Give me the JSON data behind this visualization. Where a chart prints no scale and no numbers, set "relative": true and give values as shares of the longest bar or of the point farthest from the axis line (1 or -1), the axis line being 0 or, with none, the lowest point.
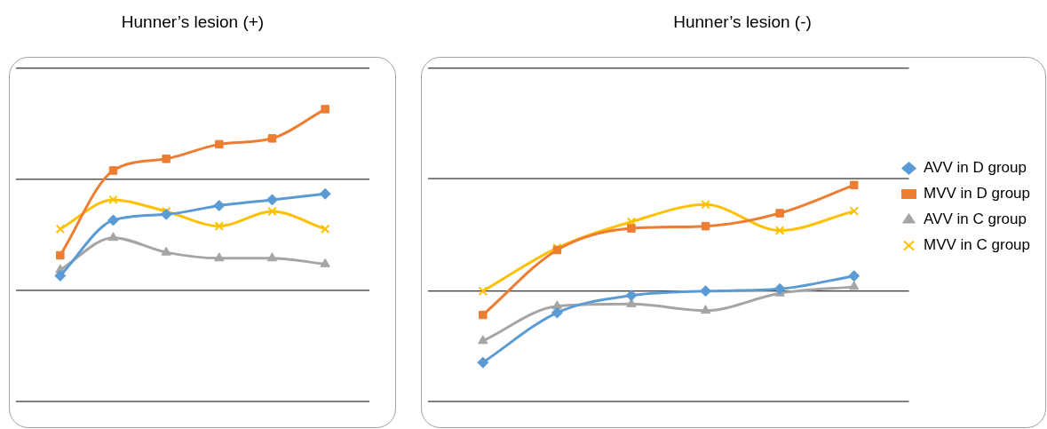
{
  "chart_data": [
    {
      "type": "line",
      "title": "Hunner’s lesion (+)",
      "relative": true,
      "ref_lines": [
        {
          "axis": "y",
          "value": 0,
          "color": "#000000"
        },
        {
          "axis": "y",
          "value": 0.38,
          "color": "#000000"
        },
        {
          "axis": "y",
          "value": 0.76,
          "color": "#000000"
        },
        {
          "axis": "y",
          "value": 1.14,
          "color": "#000000"
        }
      ],
      "legend": false,
      "categories": [
        null,
        null,
        null,
        null,
        null,
        null
      ],
      "series": [
        {
          "color": "#5b9bd5",
          "marker": "diamond",
          "values": [
            0.43,
            0.62,
            0.64,
            0.67,
            0.69,
            0.71
          ]
        },
        {
          "color": "#ed7d31",
          "marker": "square",
          "values": [
            0.5,
            0.79,
            0.83,
            0.88,
            0.9,
            1
          ]
        },
        {
          "color": "#a5a5a5",
          "marker": "triangle",
          "values": [
            0.45,
            0.56,
            0.51,
            0.49,
            0.49,
            0.47
          ]
        },
        {
          "color": "#ffc000",
          "marker": "cross",
          "values": [
            0.59,
            0.69,
            0.65,
            0.6,
            0.65,
            0.59
          ]
        }
      ]
    },
    {
      "type": "line",
      "title": "Hunner’s lesion (-)",
      "relative": true,
      "ref_lines": [
        {
          "axis": "y",
          "value": 0,
          "color": "#000000"
        },
        {
          "axis": "y",
          "value": 0.51,
          "color": "#000000"
        },
        {
          "axis": "y",
          "value": 1.03,
          "color": "#000000"
        },
        {
          "axis": "y",
          "value": 1.54,
          "color": "#000000"
        }
      ],
      "legend": "right",
      "categories": [
        null,
        null,
        null,
        null,
        null,
        null
      ],
      "series": [
        {
          "name": "AVV in D group",
          "color": "#5b9bd5",
          "marker": "diamond",
          "values": [
            0.18,
            0.41,
            0.49,
            0.51,
            0.52,
            0.58
          ]
        },
        {
          "name": "MVV in D group",
          "color": "#ed7d31",
          "marker": "square",
          "values": [
            0.4,
            0.7,
            0.8,
            0.81,
            0.87,
            1
          ]
        },
        {
          "name": "AVV in C group",
          "color": "#a5a5a5",
          "marker": "triangle",
          "values": [
            0.28,
            0.44,
            0.45,
            0.42,
            0.5,
            0.53
          ]
        },
        {
          "name": "MVV in C group",
          "color": "#ffc000",
          "marker": "cross",
          "values": [
            0.51,
            0.71,
            0.83,
            0.91,
            0.79,
            0.88
          ]
        }
      ]
    }
  ]
}
